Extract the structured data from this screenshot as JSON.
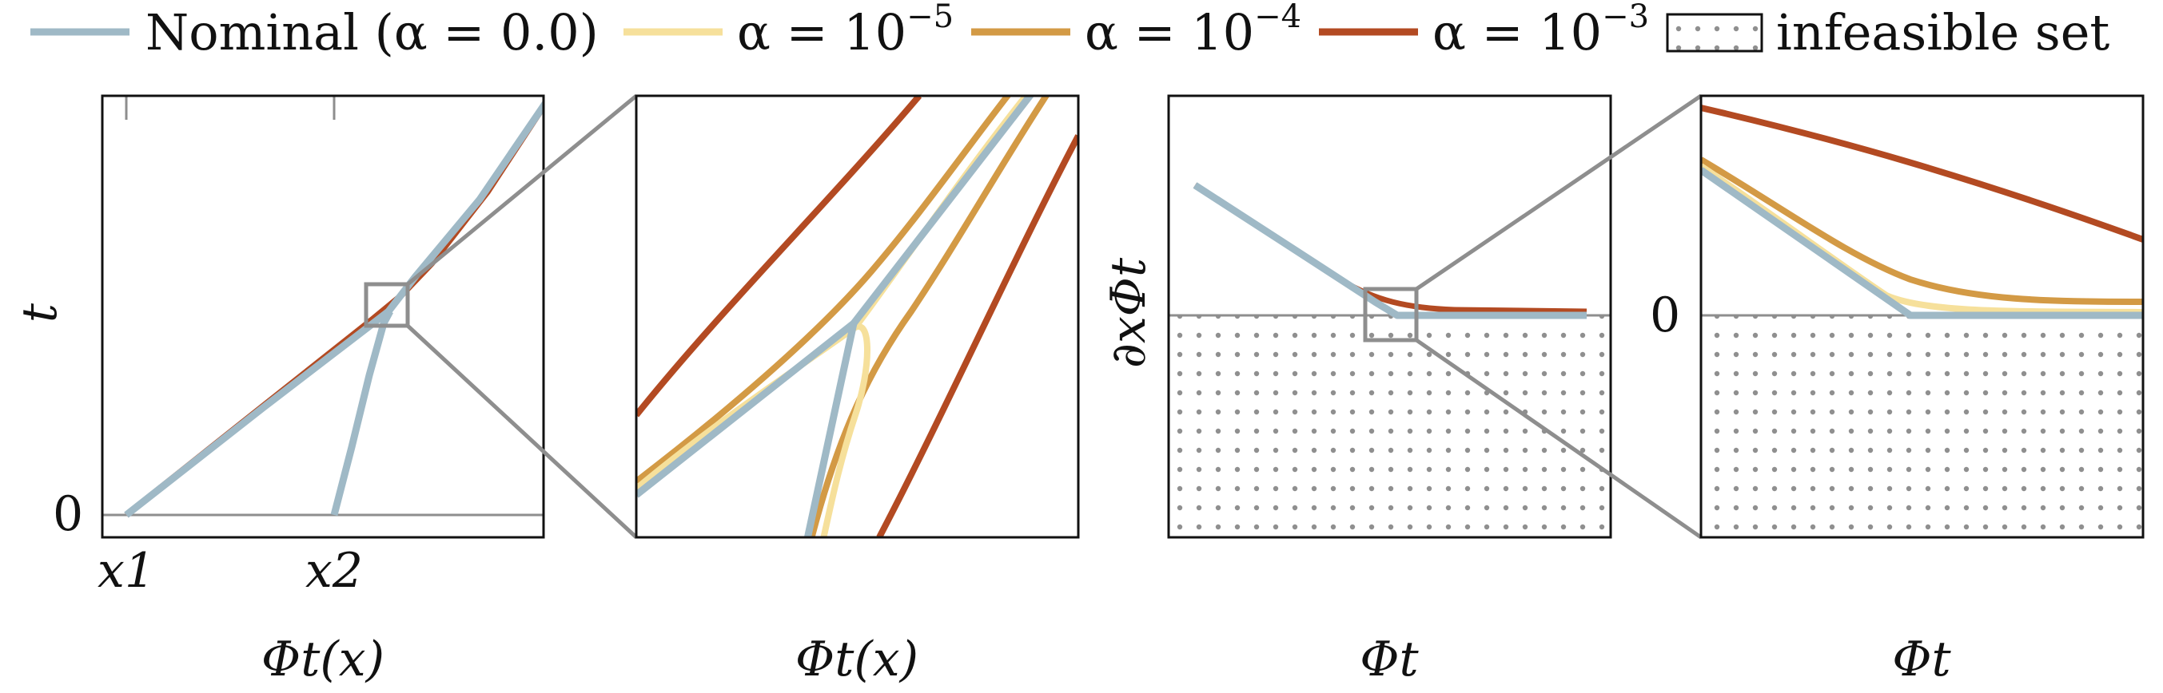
{
  "colors": {
    "nominal": "#9fb9c6",
    "a1e5": "#f6e09b",
    "a1e4": "#d39a45",
    "a1e3": "#b34a22",
    "zoom": "#8e8e8e",
    "frame": "#111111",
    "infeasible_dot": "#8f8f8f"
  },
  "legend": {
    "nominal": "Nominal (α = 0.0)",
    "a1e5": "α = 10",
    "a1e5_exp": "−5",
    "a1e4": "α = 10",
    "a1e4_exp": "−4",
    "a1e3": "α = 10",
    "a1e3_exp": "−3",
    "infeasible": "infeasible set"
  },
  "chart_data": [
    {
      "type": "line",
      "title": "",
      "xlabel": "Φt(x)",
      "ylabel": "t",
      "xticks": [
        "x1",
        "x2"
      ],
      "yticks": [
        "0"
      ],
      "series": [
        {
          "name": "Nominal (α = 0.0)",
          "x": [
            0.05,
            0.2,
            0.45,
            0.56,
            0.62,
            0.7,
            0.8,
            1.0
          ],
          "y": [
            0.0,
            0.17,
            0.39,
            0.47,
            0.5,
            0.64,
            0.79,
            1.05
          ]
        },
        {
          "name": "Nominal (α = 0.0)",
          "x": [
            0.5,
            0.53,
            0.56,
            0.6,
            0.62
          ],
          "y": [
            0.0,
            0.15,
            0.3,
            0.44,
            0.5
          ]
        },
        {
          "name": "α = 10−3",
          "x": [
            0.05,
            0.2,
            0.45,
            0.58,
            0.68,
            0.8,
            1.0
          ],
          "y": [
            0.0,
            0.18,
            0.41,
            0.52,
            0.63,
            0.79,
            1.05
          ]
        }
      ]
    },
    {
      "type": "line",
      "title": "",
      "xlabel": "Φt(x)",
      "ylabel": "",
      "series": [
        {
          "name": "Nominal (α = 0.0)",
          "x": [
            0.0,
            0.2,
            0.4,
            0.49,
            0.44,
            0.38
          ],
          "y": [
            0.1,
            0.3,
            0.46,
            0.5,
            0.2,
            -0.05
          ]
        },
        {
          "name": "Nominal (α = 0.0)",
          "x": [
            0.49,
            0.58,
            0.68,
            0.82,
            0.88
          ],
          "y": [
            0.5,
            0.65,
            0.8,
            0.98,
            1.05
          ]
        },
        {
          "name": "α = 10−5",
          "x": [
            0.0,
            0.2,
            0.4,
            0.5,
            0.54,
            0.56,
            0.6
          ],
          "y": [
            0.11,
            0.31,
            0.47,
            0.51,
            0.44,
            0.3,
            0.0
          ]
        },
        {
          "name": "α = 10−4",
          "x": [
            0.0,
            0.2,
            0.4,
            0.52,
            0.62,
            0.76,
            0.89
          ],
          "y": [
            0.12,
            0.33,
            0.5,
            0.6,
            0.75,
            0.95,
            1.05
          ]
        },
        {
          "name": "α = 10−4",
          "x": [
            0.4,
            0.5,
            0.62,
            0.72,
            0.84,
            0.93
          ],
          "y": [
            -0.05,
            0.2,
            0.45,
            0.62,
            0.86,
            1.05
          ]
        },
        {
          "name": "α = 10−3",
          "x": [
            0.0,
            0.2,
            0.42,
            0.62,
            0.76
          ],
          "y": [
            0.28,
            0.52,
            0.77,
            1.0,
            1.05
          ]
        },
        {
          "name": "α = 10−3",
          "x": [
            0.55,
            0.7,
            0.86,
            1.0
          ],
          "y": [
            -0.05,
            0.25,
            0.55,
            0.9
          ]
        }
      ]
    },
    {
      "type": "line",
      "title": "",
      "xlabel": "Φt",
      "ylabel": "∂xΦt",
      "infeasible_region": "y < 0",
      "series": [
        {
          "name": "Nominal (α = 0.0)",
          "x": [
            0.06,
            0.25,
            0.45,
            0.5,
            0.7,
            0.95
          ],
          "y": [
            0.6,
            0.33,
            0.04,
            0.0,
            0.0,
            0.0
          ]
        },
        {
          "name": "α = 10−3",
          "x": [
            0.06,
            0.25,
            0.45,
            0.55,
            0.7,
            0.95
          ],
          "y": [
            0.6,
            0.34,
            0.08,
            0.03,
            0.02,
            0.02
          ]
        }
      ]
    },
    {
      "type": "line",
      "title": "",
      "xlabel": "Φt",
      "ylabel": "",
      "yticks": [
        "0"
      ],
      "infeasible_region": "y < 0",
      "series": [
        {
          "name": "Nominal (α = 0.0)",
          "x": [
            0.0,
            0.47,
            1.0
          ],
          "y": [
            0.65,
            0.0,
            0.0
          ]
        },
        {
          "name": "α = 10−5",
          "x": [
            0.0,
            0.3,
            0.47,
            0.7,
            1.0
          ],
          "y": [
            0.66,
            0.26,
            0.06,
            0.02,
            0.01
          ]
        },
        {
          "name": "α = 10−4",
          "x": [
            0.0,
            0.3,
            0.5,
            0.75,
            1.0
          ],
          "y": [
            0.7,
            0.34,
            0.15,
            0.06,
            0.05
          ]
        },
        {
          "name": "α = 10−3",
          "x": [
            0.0,
            0.3,
            0.6,
            1.0
          ],
          "y": [
            0.95,
            0.75,
            0.56,
            0.35
          ]
        }
      ]
    }
  ]
}
